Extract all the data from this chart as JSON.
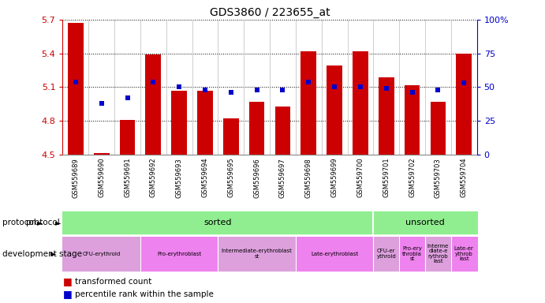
{
  "title": "GDS3860 / 223655_at",
  "samples": [
    "GSM559689",
    "GSM559690",
    "GSM559691",
    "GSM559692",
    "GSM559693",
    "GSM559694",
    "GSM559695",
    "GSM559696",
    "GSM559697",
    "GSM559698",
    "GSM559699",
    "GSM559700",
    "GSM559701",
    "GSM559702",
    "GSM559703",
    "GSM559704"
  ],
  "transformed_count": [
    5.67,
    4.51,
    4.81,
    5.39,
    5.07,
    5.07,
    4.82,
    4.97,
    4.93,
    5.42,
    5.29,
    5.42,
    5.19,
    5.12,
    4.97,
    5.4
  ],
  "percentile_rank": [
    54,
    38,
    42,
    54,
    50,
    48,
    46,
    48,
    48,
    54,
    50,
    50,
    49,
    46,
    48,
    53
  ],
  "ymin": 4.5,
  "ymax": 5.7,
  "bar_color": "#cc0000",
  "dot_color": "#0000cc",
  "left_yticks": [
    4.5,
    4.8,
    5.1,
    5.4,
    5.7
  ],
  "right_yticks": [
    0,
    25,
    50,
    75,
    100
  ],
  "bg_color": "#ffffff",
  "xticklabel_bg": "#d3d3d3",
  "protocol_sorted_color": "#90ee90",
  "protocol_unsorted_color": "#90ee90",
  "dev_segs": [
    {
      "start": 0,
      "end": 2,
      "label": "CFU-erythroid",
      "color": "#dda0dd"
    },
    {
      "start": 3,
      "end": 5,
      "label": "Pro-erythroblast",
      "color": "#ee82ee"
    },
    {
      "start": 6,
      "end": 8,
      "label": "Intermediate-erythroblast\nst",
      "color": "#dda0dd"
    },
    {
      "start": 9,
      "end": 11,
      "label": "Late-erythroblast",
      "color": "#ee82ee"
    },
    {
      "start": 12,
      "end": 12,
      "label": "CFU-er\nythroid",
      "color": "#dda0dd"
    },
    {
      "start": 13,
      "end": 13,
      "label": "Pro-ery\nthrobla\nst",
      "color": "#ee82ee"
    },
    {
      "start": 14,
      "end": 14,
      "label": "Interme\ndiate-e\nrythrob\nlast",
      "color": "#dda0dd"
    },
    {
      "start": 15,
      "end": 15,
      "label": "Late-er\nythrob\nlast",
      "color": "#ee82ee"
    }
  ]
}
